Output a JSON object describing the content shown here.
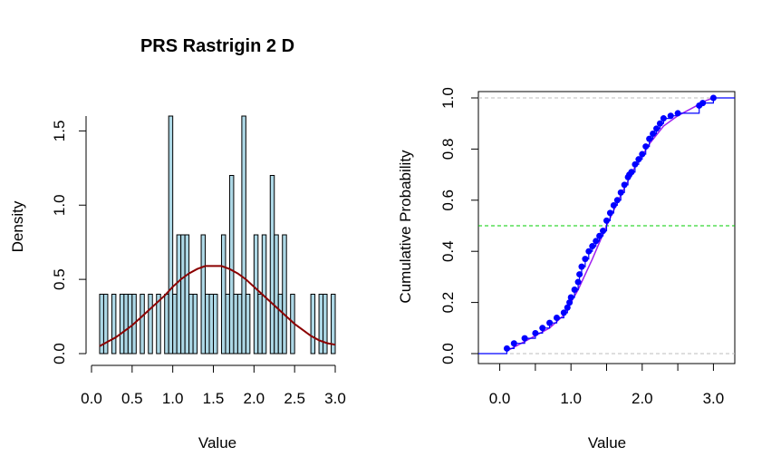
{
  "chart_data": [
    {
      "type": "bar",
      "title": "PRS Rastrigin 2 D",
      "xlabel": "Value",
      "ylabel": "Density",
      "xlim": [
        0,
        3.0
      ],
      "ylim": [
        0,
        1.6
      ],
      "xticks": [
        "0.0",
        "0.5",
        "1.0",
        "1.5",
        "2.0",
        "2.5",
        "3.0"
      ],
      "yticks": [
        "0.0",
        "0.5",
        "1.0",
        "1.5"
      ],
      "bin_width": 0.05,
      "bin_start": 0.1,
      "values": [
        0.4,
        0.4,
        0,
        0.4,
        0,
        0.4,
        0.4,
        0.4,
        0.4,
        0,
        0.4,
        0,
        0.4,
        0,
        0.4,
        0,
        0.4,
        1.6,
        0.4,
        0.8,
        0.8,
        0.8,
        0.4,
        0.4,
        0,
        0.8,
        0.4,
        0.4,
        0.4,
        0,
        0.8,
        0.4,
        1.2,
        0.4,
        0.4,
        1.6,
        0.4,
        0,
        0.8,
        0.4,
        0.8,
        0,
        1.2,
        0.8,
        0.4,
        0.8,
        0,
        0.4,
        0,
        0,
        0,
        0,
        0.4,
        0,
        0.4,
        0.4,
        0,
        0.4
      ],
      "density_curve": {
        "color": "#8b0000",
        "x": [
          0.1,
          0.2,
          0.3,
          0.4,
          0.5,
          0.6,
          0.7,
          0.8,
          0.9,
          1.0,
          1.1,
          1.2,
          1.3,
          1.4,
          1.5,
          1.6,
          1.7,
          1.8,
          1.9,
          2.0,
          2.1,
          2.2,
          2.3,
          2.4,
          2.5,
          2.6,
          2.7,
          2.8,
          2.9,
          3.0
        ],
        "y": [
          0.05,
          0.08,
          0.11,
          0.15,
          0.19,
          0.24,
          0.29,
          0.34,
          0.39,
          0.45,
          0.5,
          0.54,
          0.57,
          0.59,
          0.59,
          0.59,
          0.57,
          0.54,
          0.5,
          0.45,
          0.4,
          0.35,
          0.3,
          0.25,
          0.2,
          0.16,
          0.12,
          0.09,
          0.07,
          0.06
        ]
      },
      "bar_fill": "#add8e6",
      "bar_stroke": "#000000"
    },
    {
      "type": "line",
      "xlabel": "Value",
      "ylabel": "Cumulative Probability",
      "xlim": [
        -0.3,
        3.3
      ],
      "ylim": [
        0,
        1.0
      ],
      "xticks": [
        "0.0",
        "1.0",
        "2.0",
        "3.0"
      ],
      "yticks": [
        "0.0",
        "0.2",
        "0.4",
        "0.6",
        "0.8",
        "1.0"
      ],
      "hlines": [
        {
          "y": 0.0,
          "color": "#bebebe"
        },
        {
          "y": 0.5,
          "color": "#00cd00"
        },
        {
          "y": 1.0,
          "color": "#bebebe"
        }
      ],
      "series": [
        {
          "style": "ecdf-points",
          "color": "#0000ff",
          "x": [
            0.1,
            0.2,
            0.35,
            0.5,
            0.6,
            0.7,
            0.8,
            0.9,
            0.95,
            0.98,
            1.0,
            1.05,
            1.1,
            1.12,
            1.15,
            1.2,
            1.25,
            1.3,
            1.35,
            1.4,
            1.45,
            1.5,
            1.55,
            1.6,
            1.65,
            1.7,
            1.75,
            1.8,
            1.82,
            1.85,
            1.9,
            1.95,
            2.0,
            2.05,
            2.1,
            2.15,
            2.2,
            2.25,
            2.3,
            2.4,
            2.5,
            2.8,
            2.85,
            3.0
          ],
          "y": [
            0.02,
            0.04,
            0.06,
            0.08,
            0.1,
            0.12,
            0.14,
            0.16,
            0.18,
            0.2,
            0.22,
            0.25,
            0.28,
            0.31,
            0.34,
            0.37,
            0.4,
            0.42,
            0.44,
            0.46,
            0.48,
            0.52,
            0.55,
            0.58,
            0.6,
            0.63,
            0.66,
            0.69,
            0.7,
            0.71,
            0.74,
            0.76,
            0.78,
            0.81,
            0.84,
            0.86,
            0.88,
            0.9,
            0.92,
            0.93,
            0.94,
            0.97,
            0.98,
            1.0
          ]
        },
        {
          "style": "smooth-cdf",
          "color": "#a020f0",
          "x": [
            0.1,
            0.3,
            0.5,
            0.7,
            0.9,
            1.1,
            1.3,
            1.5,
            1.7,
            1.9,
            2.1,
            2.3,
            2.5,
            2.7,
            2.9,
            3.0
          ],
          "y": [
            0.01,
            0.04,
            0.07,
            0.1,
            0.15,
            0.25,
            0.37,
            0.5,
            0.62,
            0.73,
            0.82,
            0.89,
            0.93,
            0.96,
            0.99,
            1.0
          ]
        }
      ]
    }
  ]
}
